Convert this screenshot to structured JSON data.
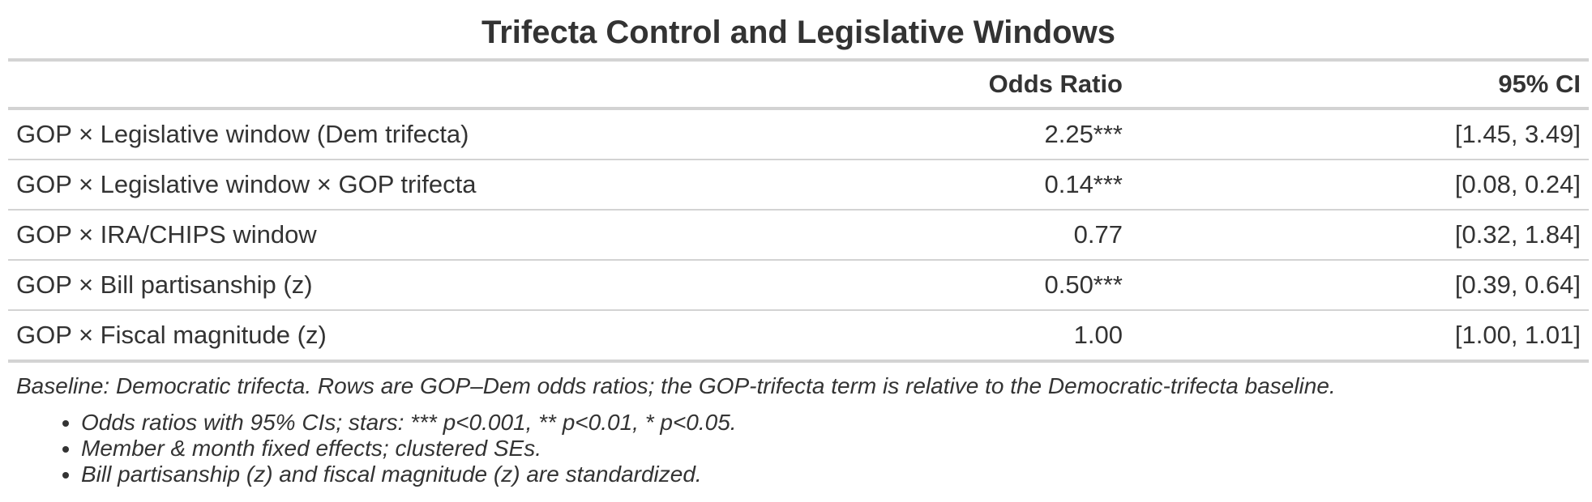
{
  "title": "Trifecta Control and Legislative Windows",
  "table": {
    "columns": [
      "",
      "Odds Ratio",
      "95% CI"
    ],
    "rows": [
      {
        "term": "GOP × Legislative window (Dem trifecta)",
        "odds_ratio": "2.25***",
        "ci": "[1.45, 3.49]"
      },
      {
        "term": "GOP × Legislative window × GOP trifecta",
        "odds_ratio": "0.14***",
        "ci": "[0.08, 0.24]"
      },
      {
        "term": "GOP × IRA/CHIPS window",
        "odds_ratio": "0.77",
        "ci": "[0.32, 1.84]"
      },
      {
        "term": "GOP × Bill partisanship (z)",
        "odds_ratio": "0.50***",
        "ci": "[0.39, 0.64]"
      },
      {
        "term": "GOP × Fiscal magnitude (z)",
        "odds_ratio": "1.00",
        "ci": "[1.00, 1.01]"
      }
    ]
  },
  "source_note": "Baseline: Democratic trifecta. Rows are GOP–Dem odds ratios; the GOP-trifecta term is relative to the Democratic-trifecta baseline.",
  "notes": [
    "Odds ratios with 95% CIs; stars: *** p<0.001, ** p<0.01, * p<0.05.",
    "Member & month fixed effects; clustered SEs.",
    "Bill partisanship (z) and fiscal magnitude (z) are standardized."
  ],
  "colors": {
    "text": "#333333",
    "rule": "#d3d3d3"
  }
}
